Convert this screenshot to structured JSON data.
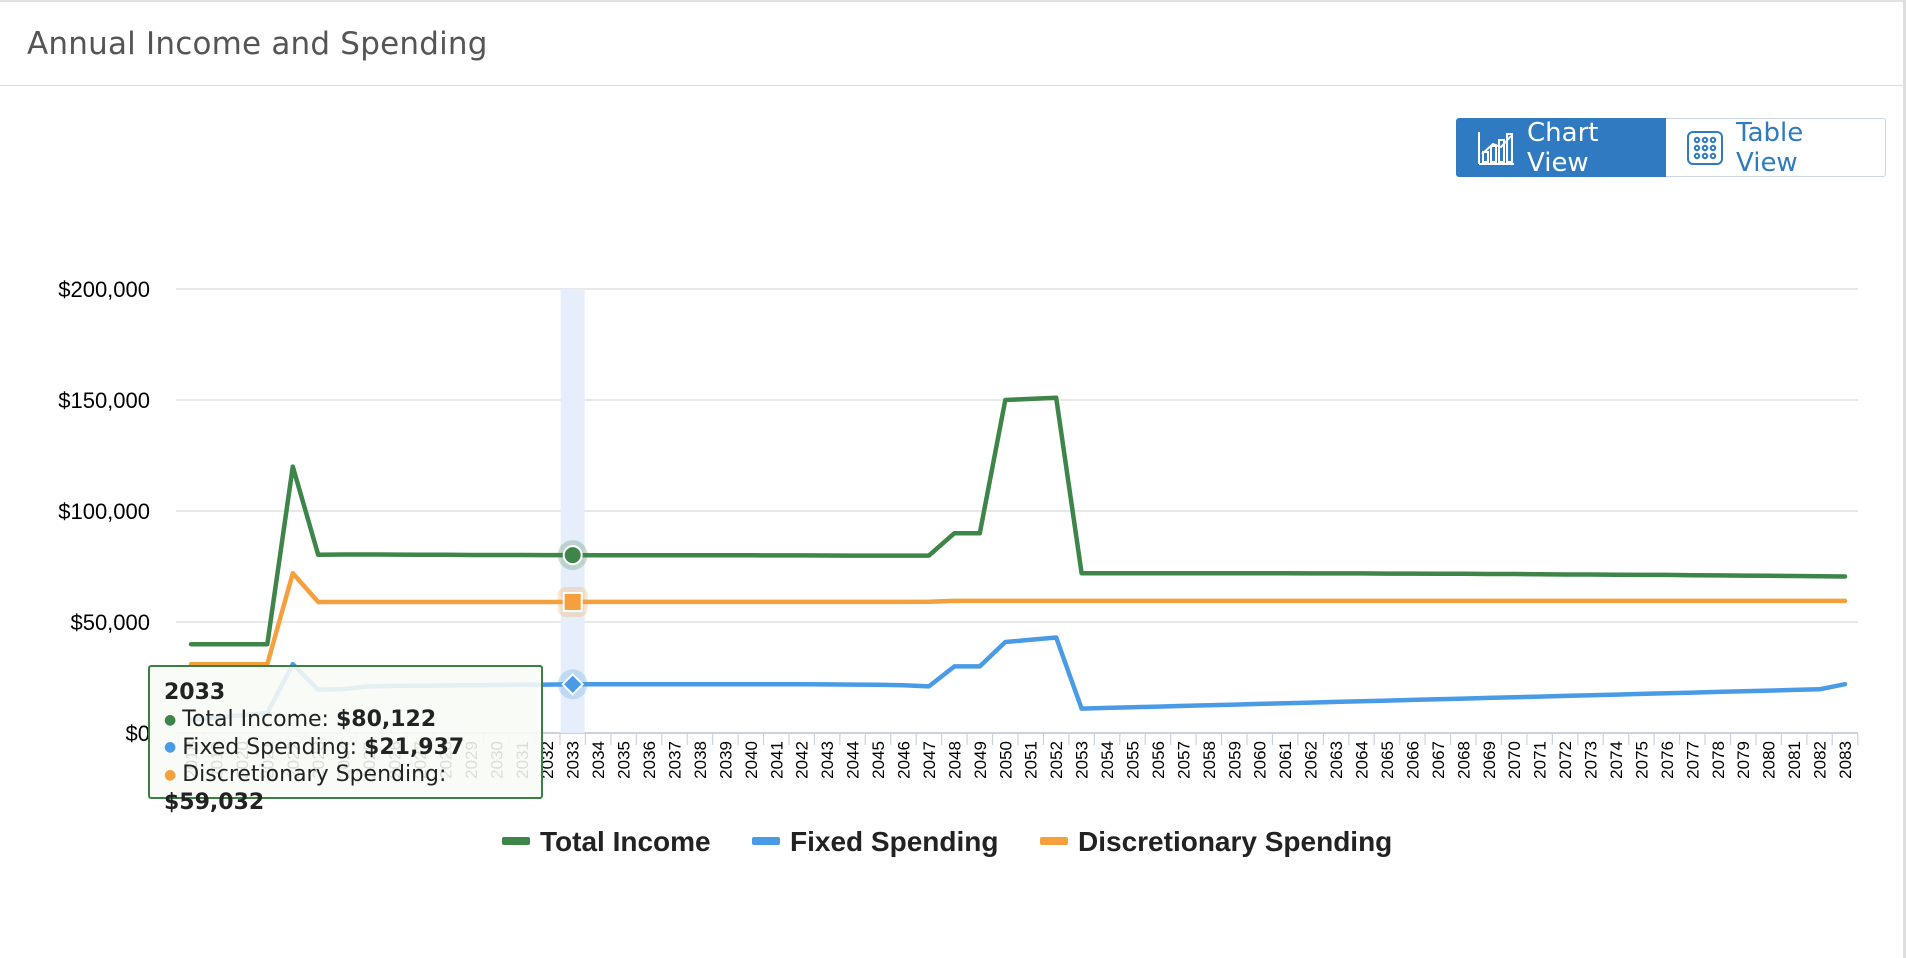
{
  "panel": {
    "title": "Annual Income and Spending"
  },
  "view_toggle": {
    "chart_label": "Chart View",
    "table_label": "Table View",
    "active": "chart"
  },
  "colors": {
    "income": "#3d8548",
    "fixed": "#4a9be5",
    "discretionary": "#f5a03c",
    "grid": "#dadada",
    "accent": "#2f7ac1",
    "highlight": "#e6eefb"
  },
  "tooltip": {
    "year": "2033",
    "rows": [
      {
        "label": "Total Income:",
        "value": "$80,122",
        "color": "#3d8548"
      },
      {
        "label": "Fixed Spending:",
        "value": "$21,937",
        "color": "#4a9be5"
      },
      {
        "label": "Discretionary Spending:",
        "value": "$59,032",
        "color": "#f5a03c"
      }
    ]
  },
  "chart_data": {
    "type": "line",
    "title": "Annual Income and Spending",
    "xlabel": "",
    "ylabel": "",
    "ylim": [
      0,
      200000
    ],
    "yticks": [
      "$0",
      "$50,000",
      "$100,000",
      "$150,000",
      "$200,000"
    ],
    "ytick_values": [
      0,
      50000,
      100000,
      150000,
      200000
    ],
    "highlight_category": "2033",
    "categories": [
      "2018",
      "2019",
      "2020",
      "2021",
      "2022",
      "2023",
      "2024",
      "2025",
      "2026",
      "2027",
      "2028",
      "2029",
      "2030",
      "2031",
      "2032",
      "2033",
      "2034",
      "2035",
      "2036",
      "2037",
      "2038",
      "2039",
      "2040",
      "2041",
      "2042",
      "2043",
      "2044",
      "2045",
      "2046",
      "2047",
      "2048",
      "2049",
      "2050",
      "2051",
      "2052",
      "2053",
      "2054",
      "2055",
      "2056",
      "2057",
      "2058",
      "2059",
      "2060",
      "2061",
      "2062",
      "2063",
      "2064",
      "2065",
      "2066",
      "2067",
      "2068",
      "2069",
      "2070",
      "2071",
      "2072",
      "2073",
      "2074",
      "2075",
      "2076",
      "2077",
      "2078",
      "2079",
      "2080",
      "2081",
      "2082",
      "2083"
    ],
    "tick_labels": [
      "2018",
      "2019",
      "2020",
      "2021",
      "2022",
      "2023",
      "2024",
      "2025",
      "2026",
      "2027",
      "2028",
      "2029",
      "2030",
      "2031",
      "2032",
      "2033",
      "2034",
      "2035",
      "2036",
      "2037",
      "2038",
      "2039",
      "2040",
      "2041",
      "2042",
      "2043",
      "2044",
      "2045",
      "2046",
      "2047",
      "2048",
      "2049",
      "2050",
      "2051",
      "2052",
      "2053",
      "2054",
      "2055",
      "2056",
      "2057",
      "2058",
      "2059",
      "2060",
      "2061",
      "2062",
      "2063",
      "2064",
      "2065",
      "2066",
      "2067",
      "2068",
      "2069",
      "2070",
      "2071",
      "2072",
      "2073",
      "2074",
      "2075",
      "2076",
      "2077",
      "2078",
      "2079",
      "2080",
      "2081",
      "2082",
      "2083"
    ],
    "series": [
      {
        "name": "Total Income",
        "color": "#3d8548",
        "values": [
          40000,
          40000,
          40000,
          40000,
          120000,
          80300,
          80400,
          80400,
          80350,
          80300,
          80250,
          80200,
          80200,
          80200,
          80150,
          80122,
          80100,
          80100,
          80100,
          80100,
          80100,
          80050,
          80050,
          80000,
          80000,
          79950,
          79900,
          79900,
          79900,
          79900,
          90000,
          90000,
          150000,
          150500,
          151000,
          72000,
          72000,
          72000,
          72000,
          72000,
          72000,
          72000,
          72000,
          72000,
          71900,
          71900,
          71900,
          71800,
          71800,
          71700,
          71700,
          71600,
          71600,
          71500,
          71400,
          71400,
          71300,
          71200,
          71200,
          71100,
          71000,
          70900,
          70800,
          70700,
          70600,
          70500
        ]
      },
      {
        "name": "Fixed Spending",
        "color": "#4a9be5",
        "values": [
          6000,
          7000,
          8000,
          9000,
          31000,
          19500,
          19800,
          21000,
          21200,
          21300,
          21400,
          21500,
          21600,
          21700,
          21800,
          21937,
          21950,
          21950,
          21950,
          21950,
          22000,
          22000,
          22000,
          22000,
          22000,
          21900,
          21800,
          21700,
          21500,
          21000,
          30000,
          30000,
          41000,
          42000,
          43000,
          11000,
          11300,
          11600,
          11900,
          12200,
          12500,
          12800,
          13100,
          13400,
          13700,
          14000,
          14300,
          14600,
          14900,
          15200,
          15500,
          15800,
          16100,
          16400,
          16700,
          17000,
          17300,
          17600,
          17900,
          18200,
          18500,
          18800,
          19100,
          19400,
          19700,
          22000
        ]
      },
      {
        "name": "Discretionary Spending",
        "color": "#f5a03c",
        "values": [
          31000,
          31000,
          31000,
          31000,
          72000,
          59000,
          59000,
          59000,
          59000,
          59000,
          59000,
          59000,
          59000,
          59000,
          59000,
          59032,
          59032,
          59032,
          59032,
          59032,
          59032,
          59032,
          59032,
          59032,
          59032,
          59032,
          59032,
          59032,
          59032,
          59100,
          59500,
          59500,
          59500,
          59500,
          59500,
          59500,
          59500,
          59500,
          59500,
          59500,
          59500,
          59500,
          59500,
          59500,
          59500,
          59500,
          59500,
          59500,
          59500,
          59500,
          59500,
          59500,
          59500,
          59500,
          59500,
          59500,
          59500,
          59500,
          59500,
          59500,
          59500,
          59500,
          59500,
          59500,
          59500,
          59500
        ]
      }
    ],
    "legend": [
      "Total Income",
      "Fixed Spending",
      "Discretionary Spending"
    ],
    "legend_position": "bottom-center",
    "grid": true
  }
}
